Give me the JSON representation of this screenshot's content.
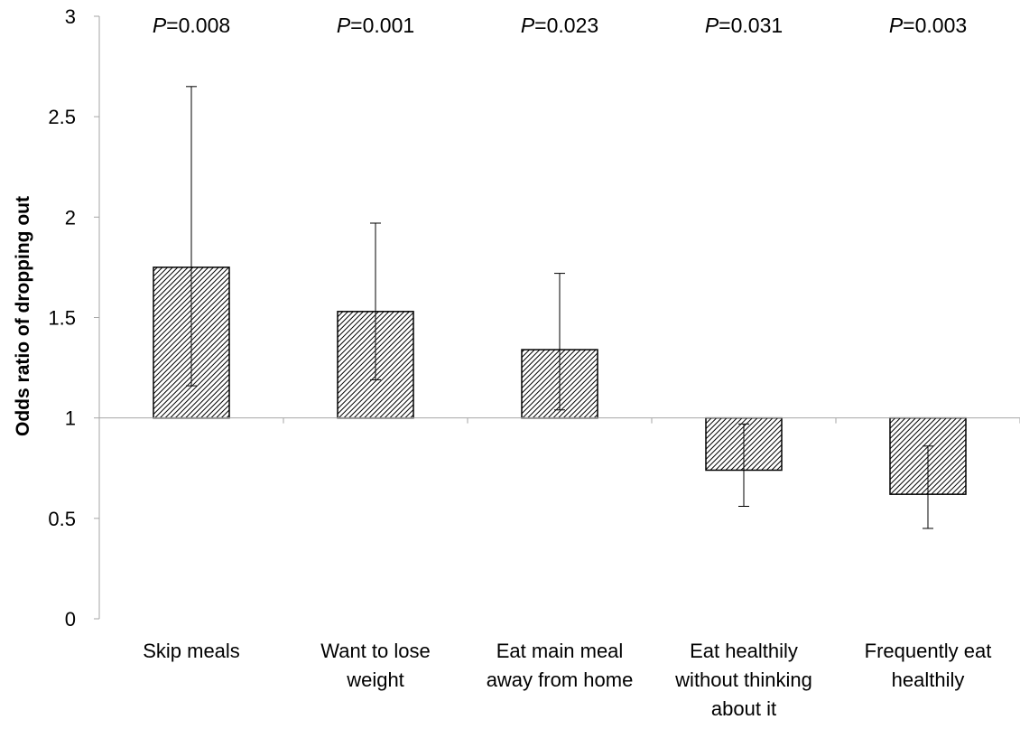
{
  "chart_data": {
    "type": "bar",
    "title": "",
    "xlabel": "",
    "ylabel": "Odds ratio of dropping out",
    "ylim": [
      0,
      3
    ],
    "yticks": [
      "0",
      "0.5",
      "1",
      "1.5",
      "2",
      "2.5",
      "3"
    ],
    "baseline": 1,
    "grid": false,
    "legend": "none",
    "bar_pattern": "diagonal-hatch",
    "colors": {
      "bar_fill": "#ffffff",
      "hatch": "#000000",
      "stroke": "#000000",
      "axis": "#a6a6a6"
    },
    "categories": [
      [
        "Skip meals"
      ],
      [
        "Want to lose",
        "weight"
      ],
      [
        "Eat main meal",
        "away from home"
      ],
      [
        "Eat healthily",
        "without thinking",
        "about it"
      ],
      [
        "Frequently eat",
        "healthily"
      ]
    ],
    "values": [
      1.75,
      1.53,
      1.34,
      0.74,
      0.62
    ],
    "ci_lower": [
      1.16,
      1.19,
      1.04,
      0.56,
      0.45
    ],
    "ci_upper": [
      2.65,
      1.97,
      1.72,
      0.97,
      0.86
    ],
    "annotations": [
      {
        "prefix": "P",
        "text": "=0.008"
      },
      {
        "prefix": "P",
        "text": "=0.001"
      },
      {
        "prefix": "P",
        "text": "=0.023"
      },
      {
        "prefix": "P",
        "text": "=0.031"
      },
      {
        "prefix": "P",
        "text": "=0.003"
      }
    ]
  }
}
